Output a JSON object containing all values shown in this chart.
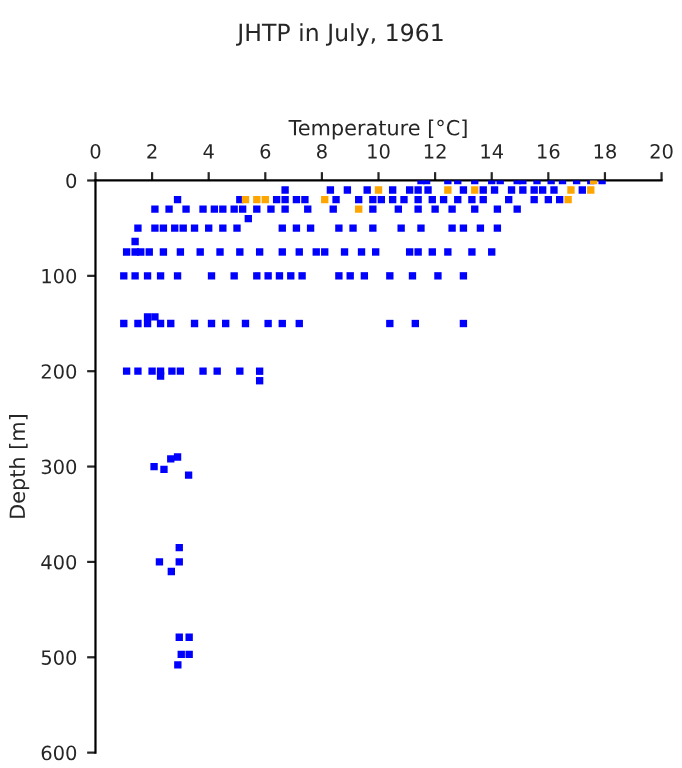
{
  "chart_data": {
    "type": "scatter",
    "title": "JHTP in July, 1961",
    "xlabel": "Temperature [°C]",
    "ylabel": "Depth [m]",
    "xlim": [
      0,
      20
    ],
    "xticks": [
      0,
      2,
      4,
      6,
      8,
      10,
      12,
      14,
      16,
      18,
      20
    ],
    "ylim": [
      600,
      0
    ],
    "yticks": [
      0,
      100,
      200,
      300,
      400,
      500,
      600
    ],
    "grid": false,
    "marker": "square",
    "legend": false,
    "series": [
      {
        "color": "#0000ff",
        "x": [
          11.5,
          11.7,
          12.45,
          12.8,
          13.4,
          14.0,
          14.3,
          14.9,
          15.1,
          15.6,
          16.1,
          16.5,
          17.0,
          17.5,
          17.9,
          6.7,
          8.3,
          8.9,
          9.6,
          10.5,
          11.1,
          11.4,
          11.75,
          13.0,
          13.7,
          14.1,
          14.7,
          15.1,
          15.5,
          15.8,
          16.2,
          17.2,
          2.9,
          5.1,
          6.4,
          6.7,
          7.1,
          7.4,
          8.5,
          9.3,
          9.8,
          10.1,
          10.5,
          10.9,
          11.4,
          11.9,
          12.3,
          12.8,
          13.3,
          13.7,
          14.6,
          15.5,
          16.0,
          16.4,
          2.1,
          2.6,
          3.2,
          3.8,
          4.2,
          4.5,
          4.9,
          5.2,
          5.7,
          6.2,
          6.7,
          7.5,
          8.4,
          9.8,
          10.7,
          11.4,
          12.0,
          12.6,
          13.4,
          14.2,
          14.9,
          5.4,
          1.5,
          2.1,
          2.4,
          2.8,
          3.1,
          3.5,
          4.0,
          4.5,
          5.0,
          6.6,
          7.1,
          7.6,
          8.6,
          9.1,
          9.8,
          10.8,
          11.5,
          12.6,
          13.0,
          13.6,
          14.2,
          1.4,
          1.1,
          1.4,
          1.6,
          1.9,
          2.4,
          3.0,
          3.7,
          4.4,
          5.1,
          5.8,
          6.6,
          7.2,
          7.8,
          8.1,
          8.8,
          9.4,
          9.9,
          11.1,
          11.4,
          11.9,
          12.45,
          13.3,
          14.0,
          1.0,
          1.4,
          1.84,
          2.3,
          2.9,
          4.1,
          4.9,
          5.7,
          6.1,
          6.5,
          6.9,
          7.3,
          8.6,
          9.0,
          9.5,
          10.4,
          11.2,
          12.1,
          13.0,
          1.84,
          2.1,
          1.0,
          1.5,
          1.84,
          2.3,
          2.66,
          3.5,
          4.1,
          4.6,
          5.3,
          6.1,
          6.6,
          7.2,
          10.4,
          11.3,
          13.0,
          1.1,
          1.5,
          2.0,
          2.3,
          2.7,
          3.0,
          3.8,
          4.3,
          5.1,
          5.8,
          2.3,
          5.8,
          2.07,
          2.42,
          2.66,
          2.9,
          3.29,
          2.96,
          2.26,
          2.96,
          2.68,
          2.96,
          3.31,
          3.03,
          3.31,
          2.91
        ],
        "values": [
          0,
          0,
          0,
          0,
          0,
          0,
          0,
          0,
          0,
          0,
          0,
          0,
          0,
          0,
          0,
          10,
          10,
          10,
          10,
          10,
          10,
          10,
          10,
          10,
          10,
          10,
          10,
          10,
          10,
          10,
          10,
          10,
          20,
          20,
          20,
          20,
          20,
          20,
          20,
          20,
          20,
          20,
          20,
          20,
          20,
          20,
          20,
          20,
          20,
          20,
          20,
          20,
          20,
          20,
          30,
          30,
          30,
          30,
          30,
          30,
          30,
          30,
          30,
          30,
          30,
          30,
          30,
          30,
          30,
          30,
          30,
          30,
          30,
          30,
          30,
          40,
          50,
          50,
          50,
          50,
          50,
          50,
          50,
          50,
          50,
          50,
          50,
          50,
          50,
          50,
          50,
          50,
          50,
          50,
          50,
          50,
          50,
          64,
          75,
          75,
          75,
          75,
          75,
          75,
          75,
          75,
          75,
          75,
          75,
          75,
          75,
          75,
          75,
          75,
          75,
          75,
          75,
          75,
          75,
          75,
          75,
          100,
          100,
          100,
          100,
          100,
          100,
          100,
          100,
          100,
          100,
          100,
          100,
          100,
          100,
          100,
          100,
          100,
          100,
          100,
          143,
          143,
          150,
          150,
          150,
          150,
          150,
          150,
          150,
          150,
          150,
          150,
          150,
          150,
          150,
          150,
          150,
          200,
          200,
          200,
          200,
          200,
          200,
          200,
          200,
          200,
          200,
          205,
          210,
          300,
          303,
          292,
          290,
          309,
          385,
          400,
          400,
          410,
          479,
          479,
          497,
          497,
          508
        ]
      },
      {
        "color": "#ffa500",
        "x": [
          17.6,
          10.0,
          12.45,
          13.4,
          16.8,
          17.5,
          5.3,
          5.7,
          6.0,
          8.1,
          16.7,
          9.3
        ],
        "values": [
          0,
          10,
          10,
          10,
          10,
          10,
          20,
          20,
          20,
          20,
          20,
          30
        ]
      }
    ]
  }
}
